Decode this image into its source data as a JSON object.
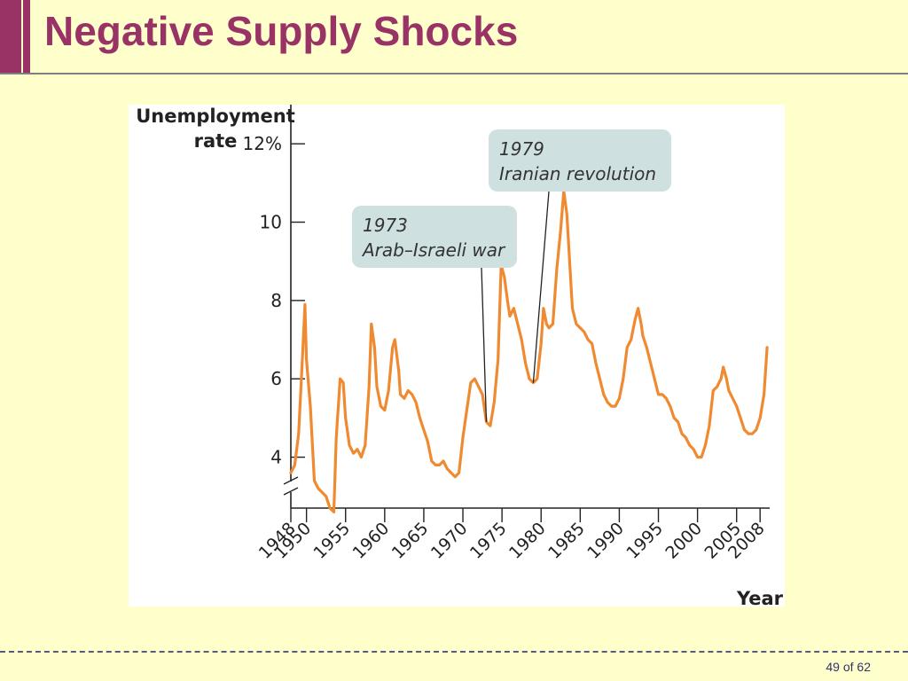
{
  "slide": {
    "title": "Negative Supply Shocks",
    "page_number": "49 of 62"
  },
  "colors": {
    "accent": "#993366",
    "background": "#ffffcc",
    "line": "#f08a30",
    "callout": "#cfe0e0"
  },
  "chart_data": {
    "type": "line",
    "ylabel": "Unemployment\nrate",
    "xlabel": "Year",
    "ylim": [
      2.7,
      13
    ],
    "xlim": [
      1948,
      2009
    ],
    "y_ticks": [
      {
        "value": 4,
        "label": "4"
      },
      {
        "value": 6,
        "label": "6"
      },
      {
        "value": 8,
        "label": "8"
      },
      {
        "value": 10,
        "label": "10"
      },
      {
        "value": 12,
        "label": "12%"
      }
    ],
    "x_ticks": [
      {
        "value": 1948,
        "label": "1948"
      },
      {
        "value": 1950,
        "label": "1950"
      },
      {
        "value": 1955,
        "label": "1955"
      },
      {
        "value": 1960,
        "label": "1960"
      },
      {
        "value": 1965,
        "label": "1965"
      },
      {
        "value": 1970,
        "label": "1970"
      },
      {
        "value": 1975,
        "label": "1975"
      },
      {
        "value": 1980,
        "label": "1980"
      },
      {
        "value": 1985,
        "label": "1985"
      },
      {
        "value": 1990,
        "label": "1990"
      },
      {
        "value": 1995,
        "label": "1995"
      },
      {
        "value": 2000,
        "label": "2000"
      },
      {
        "value": 2005,
        "label": "2005"
      },
      {
        "value": 2008,
        "label": "2008"
      }
    ],
    "axis_break": true,
    "series": [
      {
        "points": [
          [
            1948.0,
            3.6
          ],
          [
            1948.5,
            3.8
          ],
          [
            1949.0,
            4.6
          ],
          [
            1949.5,
            6.6
          ],
          [
            1949.8,
            7.9
          ],
          [
            1950.0,
            6.5
          ],
          [
            1950.5,
            5.3
          ],
          [
            1951.0,
            3.4
          ],
          [
            1951.5,
            3.2
          ],
          [
            1952.0,
            3.1
          ],
          [
            1952.5,
            3.0
          ],
          [
            1953.0,
            2.7
          ],
          [
            1953.5,
            2.6
          ],
          [
            1953.8,
            4.5
          ],
          [
            1954.3,
            6.0
          ],
          [
            1954.7,
            5.9
          ],
          [
            1955.0,
            5.0
          ],
          [
            1955.5,
            4.3
          ],
          [
            1956.0,
            4.1
          ],
          [
            1956.5,
            4.2
          ],
          [
            1957.0,
            4.0
          ],
          [
            1957.5,
            4.3
          ],
          [
            1958.0,
            5.8
          ],
          [
            1958.3,
            7.4
          ],
          [
            1958.7,
            6.8
          ],
          [
            1959.0,
            5.8
          ],
          [
            1959.5,
            5.3
          ],
          [
            1960.0,
            5.2
          ],
          [
            1960.5,
            5.7
          ],
          [
            1961.0,
            6.8
          ],
          [
            1961.3,
            7.0
          ],
          [
            1961.8,
            6.2
          ],
          [
            1962.0,
            5.6
          ],
          [
            1962.5,
            5.5
          ],
          [
            1963.0,
            5.7
          ],
          [
            1963.5,
            5.6
          ],
          [
            1964.0,
            5.4
          ],
          [
            1964.5,
            5.0
          ],
          [
            1965.0,
            4.7
          ],
          [
            1965.5,
            4.4
          ],
          [
            1966.0,
            3.9
          ],
          [
            1966.5,
            3.8
          ],
          [
            1967.0,
            3.8
          ],
          [
            1967.5,
            3.9
          ],
          [
            1968.0,
            3.7
          ],
          [
            1968.5,
            3.6
          ],
          [
            1969.0,
            3.5
          ],
          [
            1969.5,
            3.6
          ],
          [
            1970.0,
            4.5
          ],
          [
            1970.5,
            5.2
          ],
          [
            1971.0,
            5.9
          ],
          [
            1971.5,
            6.0
          ],
          [
            1972.0,
            5.8
          ],
          [
            1972.5,
            5.6
          ],
          [
            1973.0,
            4.9
          ],
          [
            1973.5,
            4.8
          ],
          [
            1974.0,
            5.4
          ],
          [
            1974.5,
            6.5
          ],
          [
            1974.9,
            8.9
          ],
          [
            1975.3,
            8.6
          ],
          [
            1975.7,
            8.0
          ],
          [
            1976.0,
            7.6
          ],
          [
            1976.5,
            7.8
          ],
          [
            1977.0,
            7.4
          ],
          [
            1977.5,
            7.0
          ],
          [
            1978.0,
            6.4
          ],
          [
            1978.5,
            6.0
          ],
          [
            1979.0,
            5.9
          ],
          [
            1979.5,
            6.0
          ],
          [
            1980.0,
            6.9
          ],
          [
            1980.3,
            7.8
          ],
          [
            1980.7,
            7.4
          ],
          [
            1981.0,
            7.3
          ],
          [
            1981.5,
            7.4
          ],
          [
            1982.0,
            8.8
          ],
          [
            1982.5,
            9.8
          ],
          [
            1982.9,
            10.8
          ],
          [
            1983.3,
            10.2
          ],
          [
            1983.7,
            8.8
          ],
          [
            1984.0,
            7.8
          ],
          [
            1984.5,
            7.4
          ],
          [
            1985.0,
            7.3
          ],
          [
            1985.5,
            7.2
          ],
          [
            1986.0,
            7.0
          ],
          [
            1986.5,
            6.9
          ],
          [
            1987.0,
            6.4
          ],
          [
            1987.5,
            6.0
          ],
          [
            1988.0,
            5.6
          ],
          [
            1988.5,
            5.4
          ],
          [
            1989.0,
            5.3
          ],
          [
            1989.5,
            5.3
          ],
          [
            1990.0,
            5.5
          ],
          [
            1990.5,
            6.0
          ],
          [
            1991.0,
            6.8
          ],
          [
            1991.5,
            7.0
          ],
          [
            1992.0,
            7.5
          ],
          [
            1992.4,
            7.8
          ],
          [
            1992.8,
            7.4
          ],
          [
            1993.0,
            7.1
          ],
          [
            1993.5,
            6.8
          ],
          [
            1994.0,
            6.4
          ],
          [
            1994.5,
            6.0
          ],
          [
            1995.0,
            5.6
          ],
          [
            1995.5,
            5.6
          ],
          [
            1996.0,
            5.5
          ],
          [
            1996.5,
            5.3
          ],
          [
            1997.0,
            5.0
          ],
          [
            1997.5,
            4.9
          ],
          [
            1998.0,
            4.6
          ],
          [
            1998.5,
            4.5
          ],
          [
            1999.0,
            4.3
          ],
          [
            1999.5,
            4.2
          ],
          [
            2000.0,
            4.0
          ],
          [
            2000.5,
            4.0
          ],
          [
            2001.0,
            4.3
          ],
          [
            2001.5,
            4.8
          ],
          [
            2002.0,
            5.7
          ],
          [
            2002.5,
            5.8
          ],
          [
            2003.0,
            6.0
          ],
          [
            2003.3,
            6.3
          ],
          [
            2003.7,
            6.0
          ],
          [
            2004.0,
            5.7
          ],
          [
            2004.5,
            5.5
          ],
          [
            2005.0,
            5.3
          ],
          [
            2005.5,
            5.0
          ],
          [
            2006.0,
            4.7
          ],
          [
            2006.5,
            4.6
          ],
          [
            2007.0,
            4.6
          ],
          [
            2007.5,
            4.7
          ],
          [
            2008.0,
            5.0
          ],
          [
            2008.5,
            5.6
          ],
          [
            2008.9,
            6.8
          ]
        ]
      }
    ],
    "annotations": [
      {
        "year_label": "1973",
        "event_label": "Arab–Israeli war",
        "x": 1973.0,
        "y": 4.9
      },
      {
        "year_label": "1979",
        "event_label": "Iranian revolution",
        "x": 1979.0,
        "y": 5.9
      }
    ]
  }
}
